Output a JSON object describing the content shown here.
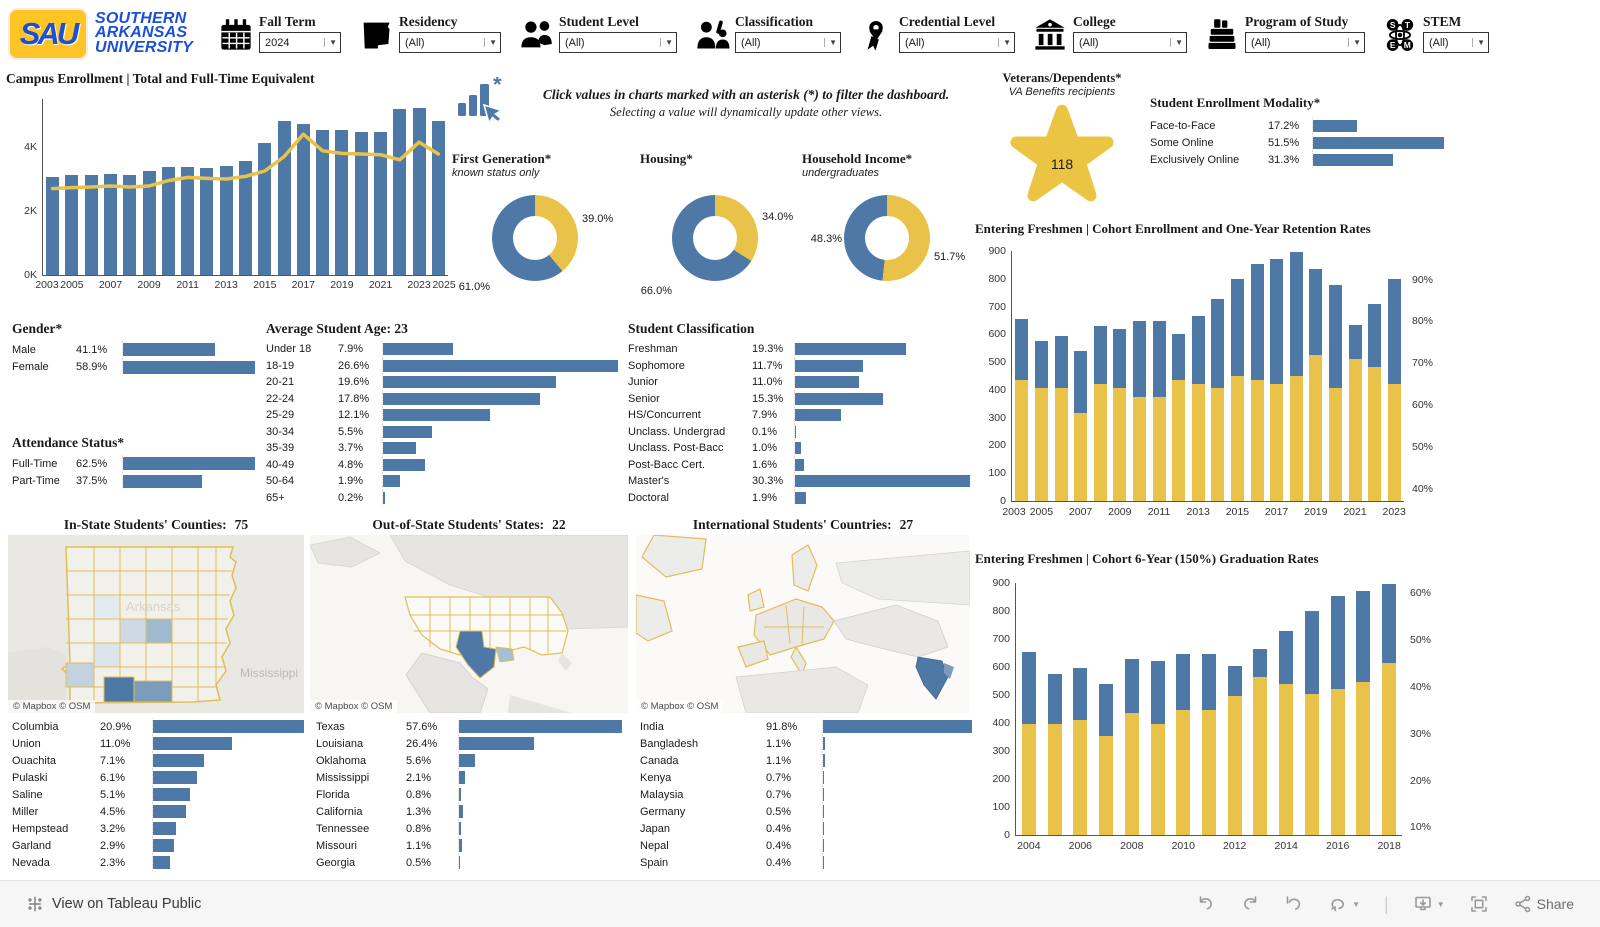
{
  "header": {
    "logo": {
      "acronym": "SAU",
      "lines": [
        "SOUTHERN",
        "ARKANSAS",
        "UNIVERSITY"
      ]
    },
    "filters": [
      {
        "label": "Fall Term",
        "value": "2024",
        "icon": "calendar-icon"
      },
      {
        "label": "Residency",
        "value": "(All)",
        "icon": "arkansas-state-icon"
      },
      {
        "label": "Student Level",
        "value": "(All)",
        "icon": "students-icon"
      },
      {
        "label": "Classification",
        "value": "(All)",
        "icon": "raised-hand-person-icon"
      },
      {
        "label": "Credential Level",
        "value": "(All)",
        "icon": "diploma-icon"
      },
      {
        "label": "College",
        "value": "(All)",
        "icon": "college-building-icon"
      },
      {
        "label": "Program of Study",
        "value": "(All)",
        "icon": "books-stack-icon"
      },
      {
        "label": "STEM",
        "value": "(All)",
        "icon": "stem-atom-icon"
      }
    ]
  },
  "instruction": {
    "line1": "Click values in charts marked with an asterisk (*) to filter the dashboard.",
    "line2": "Selecting a value will dynamically update other views."
  },
  "chart_data": {
    "enrollment": {
      "type": "bar+line",
      "title": "Campus Enrollment | Total and Full-Time Equivalent",
      "years": [
        2004,
        2005,
        2006,
        2007,
        2008,
        2009,
        2010,
        2011,
        2012,
        2013,
        2014,
        2015,
        2016,
        2017,
        2018,
        2019,
        2020,
        2021,
        2022,
        2023,
        2024
      ],
      "total": [
        3050,
        3120,
        3120,
        3150,
        3120,
        3250,
        3370,
        3370,
        3340,
        3400,
        3550,
        4120,
        4800,
        4720,
        4520,
        4530,
        4470,
        4470,
        5200,
        5230,
        4800
      ],
      "fte": [
        2700,
        2730,
        2750,
        2780,
        2750,
        2780,
        2950,
        3050,
        3020,
        3000,
        3080,
        3250,
        3700,
        4400,
        3880,
        3800,
        3780,
        3760,
        3600,
        4150,
        3780
      ],
      "ylim": [
        0,
        5500
      ],
      "yticks": [
        {
          "label": "0K",
          "value": 0
        },
        {
          "label": "2K",
          "value": 2000
        },
        {
          "label": "4K",
          "value": 4000
        }
      ],
      "xticks": [
        2003,
        2005,
        2007,
        2009,
        2011,
        2013,
        2015,
        2017,
        2019,
        2021,
        2023,
        2025
      ]
    },
    "donuts": [
      {
        "type": "pie",
        "title": "First Generation*",
        "subtitle": "known status only",
        "blue_pct": 61.0,
        "yellow_pct": 39.0
      },
      {
        "type": "pie",
        "title": "Housing*",
        "subtitle": "",
        "blue_pct": 66.0,
        "yellow_pct": 34.0
      },
      {
        "type": "pie",
        "title": "Household Income*",
        "subtitle": "undergraduates",
        "blue_pct": 48.3,
        "yellow_pct": 51.7
      }
    ],
    "veterans": {
      "title": "Veterans/Dependents*",
      "subtitle": "VA Benefits recipients",
      "count": "118"
    },
    "modality": {
      "type": "bar",
      "title": "Student Enrollment Modality*",
      "items": [
        {
          "label": "Face-to-Face",
          "pct": 17.2
        },
        {
          "label": "Some Online",
          "pct": 51.5
        },
        {
          "label": "Exclusively Online",
          "pct": 31.3
        }
      ]
    },
    "retention": {
      "type": "dual-bar",
      "title": "Entering Freshmen | Cohort Enrollment and One-Year Retention Rates",
      "years": [
        2004,
        2005,
        2006,
        2007,
        2008,
        2009,
        2010,
        2011,
        2012,
        2013,
        2014,
        2015,
        2016,
        2017,
        2018,
        2019,
        2020,
        2021,
        2022,
        2023
      ],
      "cohort": [
        655,
        575,
        595,
        540,
        630,
        620,
        648,
        648,
        602,
        665,
        727,
        800,
        855,
        873,
        898,
        835,
        778,
        635,
        710,
        800
      ],
      "rate": [
        66,
        64,
        64,
        58,
        65,
        64,
        62,
        62,
        66,
        65,
        64,
        67,
        66,
        65,
        67,
        72,
        64,
        71,
        69,
        65
      ],
      "left_axis": {
        "min": 0,
        "max": 900,
        "step": 100
      },
      "right_axis": {
        "min": 40,
        "max": 90,
        "step": 10,
        "unit": "%"
      },
      "xticks": [
        2003,
        2005,
        2007,
        2009,
        2011,
        2013,
        2015,
        2017,
        2019,
        2021,
        2023
      ]
    },
    "graduation": {
      "type": "dual-bar",
      "title": "Entering Freshmen | Cohort 6-Year (150%) Graduation Rates",
      "years": [
        2004,
        2005,
        2006,
        2007,
        2008,
        2009,
        2010,
        2011,
        2012,
        2013,
        2014,
        2015,
        2016,
        2017,
        2018
      ],
      "cohort": [
        655,
        575,
        595,
        540,
        630,
        620,
        648,
        648,
        602,
        665,
        727,
        800,
        855,
        873,
        898
      ],
      "rate": [
        32,
        32,
        33,
        29.5,
        34.5,
        32,
        35,
        35,
        38,
        42,
        40.5,
        38.5,
        39.5,
        41,
        45
      ],
      "left_axis": {
        "min": 0,
        "max": 900,
        "step": 100
      },
      "right_axis": {
        "min": 10,
        "max": 60,
        "step": 10,
        "unit": "%"
      },
      "xticks": [
        2004,
        2006,
        2008,
        2010,
        2012,
        2014,
        2016,
        2018
      ]
    },
    "gender": {
      "type": "bar",
      "title": "Gender*",
      "items": [
        {
          "label": "Male",
          "pct": 41.1
        },
        {
          "label": "Female",
          "pct": 58.9
        }
      ]
    },
    "attendance": {
      "type": "bar",
      "title": "Attendance Status*",
      "items": [
        {
          "label": "Full-Time",
          "pct": 62.5
        },
        {
          "label": "Part-Time",
          "pct": 37.5
        }
      ]
    },
    "age": {
      "type": "bar",
      "title": "Average Student Age:",
      "highlight": "23",
      "items": [
        {
          "label": "Under 18",
          "pct": 7.9
        },
        {
          "label": "18-19",
          "pct": 26.6
        },
        {
          "label": "20-21",
          "pct": 19.6
        },
        {
          "label": "22-24",
          "pct": 17.8
        },
        {
          "label": "25-29",
          "pct": 12.1
        },
        {
          "label": "30-34",
          "pct": 5.5
        },
        {
          "label": "35-39",
          "pct": 3.7
        },
        {
          "label": "40-49",
          "pct": 4.8
        },
        {
          "label": "50-64",
          "pct": 1.9
        },
        {
          "label": "65+",
          "pct": 0.2
        }
      ]
    },
    "classification": {
      "type": "bar",
      "title": "Student Classification",
      "items": [
        {
          "label": "Freshman",
          "pct": 19.3
        },
        {
          "label": "Sophomore",
          "pct": 11.7
        },
        {
          "label": "Junior",
          "pct": 11.0
        },
        {
          "label": "Senior",
          "pct": 15.3
        },
        {
          "label": "HS/Concurrent",
          "pct": 7.9
        },
        {
          "label": "Unclass. Undergrad",
          "pct": 0.1
        },
        {
          "label": "Unclass. Post-Bacc",
          "pct": 1.0
        },
        {
          "label": "Post-Bacc Cert.",
          "pct": 1.6
        },
        {
          "label": "Master's",
          "pct": 30.3
        },
        {
          "label": "Doctoral",
          "pct": 1.9
        }
      ]
    },
    "counties_list": {
      "type": "bar",
      "items": [
        {
          "label": "Columbia",
          "pct": 20.9
        },
        {
          "label": "Union",
          "pct": 11.0
        },
        {
          "label": "Ouachita",
          "pct": 7.1
        },
        {
          "label": "Pulaski",
          "pct": 6.1
        },
        {
          "label": "Saline",
          "pct": 5.1
        },
        {
          "label": "Miller",
          "pct": 4.5
        },
        {
          "label": "Hempstead",
          "pct": 3.2
        },
        {
          "label": "Garland",
          "pct": 2.9
        },
        {
          "label": "Nevada",
          "pct": 2.3
        }
      ]
    },
    "states_list": {
      "type": "bar",
      "items": [
        {
          "label": "Texas",
          "pct": 57.6
        },
        {
          "label": "Louisiana",
          "pct": 26.4
        },
        {
          "label": "Oklahoma",
          "pct": 5.6
        },
        {
          "label": "Mississippi",
          "pct": 2.1
        },
        {
          "label": "Florida",
          "pct": 0.8
        },
        {
          "label": "California",
          "pct": 1.3
        },
        {
          "label": "Tennessee",
          "pct": 0.8
        },
        {
          "label": "Missouri",
          "pct": 1.1
        },
        {
          "label": "Georgia",
          "pct": 0.5
        }
      ]
    },
    "countries_list": {
      "type": "bar",
      "items": [
        {
          "label": "India",
          "pct": 91.8
        },
        {
          "label": "Bangladesh",
          "pct": 1.1
        },
        {
          "label": "Canada",
          "pct": 1.1
        },
        {
          "label": "Kenya",
          "pct": 0.7
        },
        {
          "label": "Malaysia",
          "pct": 0.7
        },
        {
          "label": "Germany",
          "pct": 0.5
        },
        {
          "label": "Japan",
          "pct": 0.4
        },
        {
          "label": "Nepal",
          "pct": 0.4
        },
        {
          "label": "Spain",
          "pct": 0.4
        }
      ]
    }
  },
  "maps": [
    {
      "title": "In-State Students' Counties:",
      "count": "75"
    },
    {
      "title": "Out-of-State Students' States:",
      "count": "22"
    },
    {
      "title": "International Students' Countries:",
      "count": "27"
    }
  ],
  "map_labels": {
    "attribution": "© Mapbox  © OSM",
    "arkansas": "Arkansas",
    "mississippi": "Mississippi"
  },
  "footer": {
    "view_label": "View on Tableau Public",
    "share_label": "Share"
  }
}
